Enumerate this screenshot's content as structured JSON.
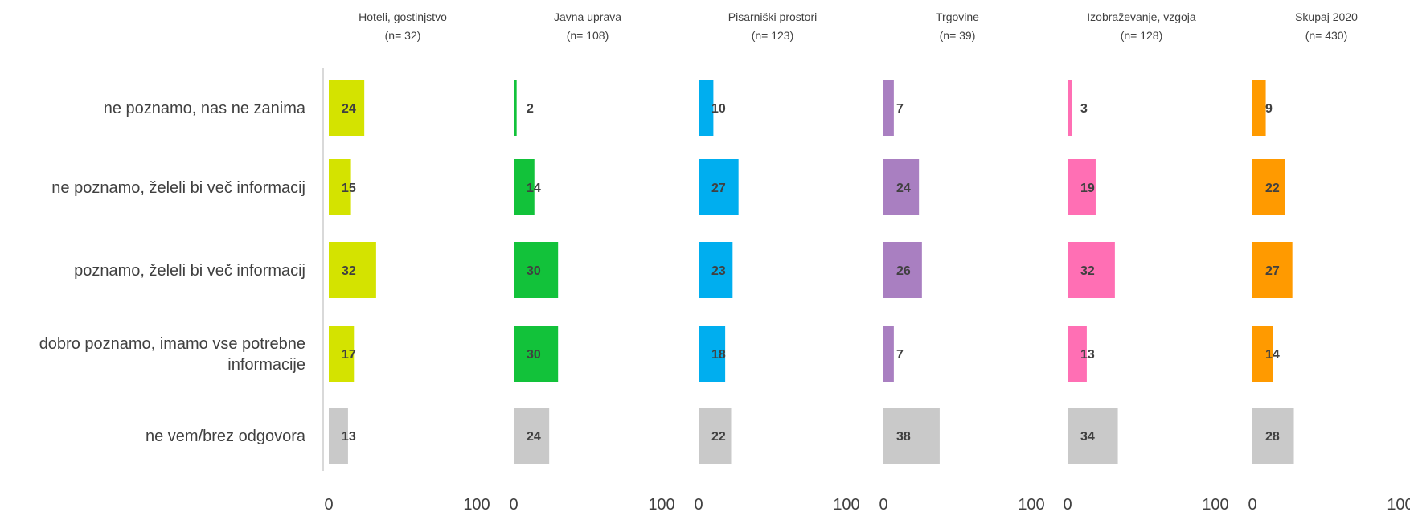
{
  "chart_data": {
    "type": "bar",
    "orientation": "horizontal",
    "categories": [
      "ne poznamo, nas ne zanima",
      "ne poznamo, želeli bi več informacij",
      "poznamo, želeli bi več informacij",
      "dobro poznamo, imamo vse potrebne informacije",
      "ne vem/brez odgovora"
    ],
    "category_lines": [
      [
        "ne poznamo, nas ne zanima"
      ],
      [
        "ne poznamo, želeli bi več informacij"
      ],
      [
        "poznamo, želeli bi več informacij"
      ],
      [
        "dobro poznamo, imamo vse potrebne",
        "informacije"
      ],
      [
        "ne vem/brez odgovora"
      ]
    ],
    "xlim": [
      0,
      100
    ],
    "xticks": [
      "0",
      "100"
    ],
    "unknown_color": "#C9C9C9",
    "panels": [
      {
        "title": "Hoteli, gostinjstvo",
        "n": "(n= 32)",
        "color": "#D4E300",
        "values": [
          24,
          15,
          32,
          17,
          13
        ]
      },
      {
        "title": "Javna uprava",
        "n": "(n= 108)",
        "color": "#12C23A",
        "values": [
          2,
          14,
          30,
          30,
          24
        ]
      },
      {
        "title": "Pisarniški prostori",
        "n": "(n= 123)",
        "color": "#00AEEF",
        "values": [
          10,
          27,
          23,
          18,
          22
        ]
      },
      {
        "title": "Trgovine",
        "n": "(n= 39)",
        "color": "#A97FC1",
        "values": [
          7,
          24,
          26,
          7,
          38
        ]
      },
      {
        "title": "Izobraževanje, vzgoja",
        "n": "(n= 128)",
        "color": "#FF6FB4",
        "values": [
          3,
          19,
          32,
          13,
          34
        ]
      },
      {
        "title": "Skupaj 2020",
        "n": "(n= 430)",
        "color": "#FF9A00",
        "values": [
          9,
          22,
          27,
          14,
          28
        ]
      }
    ]
  }
}
